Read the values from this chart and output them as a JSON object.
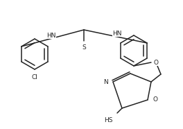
{
  "bg_color": "#ffffff",
  "line_color": "#222222",
  "line_width": 1.1,
  "font_size": 6.5,
  "figsize": [
    2.64,
    1.86
  ],
  "dpi": 100,
  "xlim": [
    0,
    264
  ],
  "ylim": [
    0,
    186
  ]
}
